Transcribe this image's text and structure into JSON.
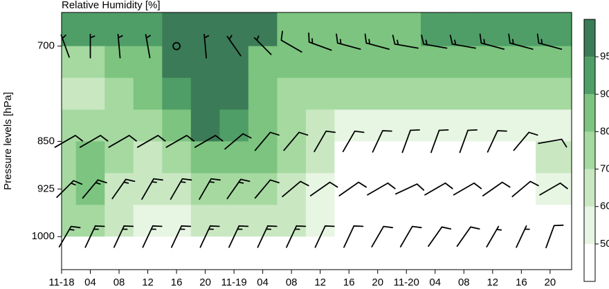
{
  "chart_data": {
    "type": "contour",
    "title": "Relative Humidity [%]",
    "y_label": "Pressure levels [hPa]",
    "xlim": [
      0,
      71
    ],
    "xticks": [
      {
        "value": 0,
        "label": "11-18"
      },
      {
        "value": 4,
        "label": "04"
      },
      {
        "value": 8,
        "label": "08"
      },
      {
        "value": 12,
        "label": "12"
      },
      {
        "value": 16,
        "label": "16"
      },
      {
        "value": 20,
        "label": "20"
      },
      {
        "value": 24,
        "label": "11-19"
      },
      {
        "value": 28,
        "label": "04"
      },
      {
        "value": 32,
        "label": "08"
      },
      {
        "value": 36,
        "label": "12"
      },
      {
        "value": 40,
        "label": "16"
      },
      {
        "value": 44,
        "label": "20"
      },
      {
        "value": 48,
        "label": "11-20"
      },
      {
        "value": 52,
        "label": "04"
      },
      {
        "value": 56,
        "label": "08"
      },
      {
        "value": 60,
        "label": "12"
      },
      {
        "value": 64,
        "label": "16"
      },
      {
        "value": 68,
        "label": "20"
      }
    ],
    "ylim": [
      1052,
      647
    ],
    "yticks": [
      700,
      850,
      925,
      1000
    ],
    "levels": [
      50,
      60,
      70,
      80,
      90,
      95
    ],
    "colors": [
      "#ffffff",
      "#e7f5e3",
      "#c9e8c2",
      "#a5d9a0",
      "#7cc47f",
      "#4f9e67",
      "#3b7b57"
    ],
    "colorbar_ticks": [
      50,
      60,
      70,
      80,
      90,
      95
    ],
    "rh": {
      "hours": [
        0,
        4,
        8,
        12,
        16,
        20,
        24,
        28,
        32,
        36,
        40,
        44,
        48,
        52,
        56,
        60,
        64,
        68
      ],
      "pressure": [
        675,
        725,
        775,
        825,
        875,
        925,
        975,
        1025
      ],
      "values": [
        [
          90,
          90,
          92,
          93,
          97,
          97,
          97,
          97,
          88,
          80,
          82,
          82,
          85,
          92,
          92,
          92,
          92,
          92
        ],
        [
          75,
          75,
          80,
          85,
          97,
          97,
          97,
          85,
          82,
          82,
          82,
          82,
          82,
          82,
          82,
          82,
          82,
          82
        ],
        [
          62,
          68,
          75,
          82,
          92,
          96,
          96,
          82,
          78,
          75,
          72,
          72,
          72,
          72,
          72,
          72,
          72,
          72
        ],
        [
          72,
          72,
          72,
          78,
          88,
          96,
          92,
          82,
          75,
          65,
          58,
          55,
          55,
          52,
          52,
          52,
          55,
          58
        ],
        [
          75,
          82,
          72,
          68,
          75,
          85,
          88,
          80,
          72,
          62,
          48,
          45,
          45,
          45,
          45,
          45,
          45,
          62
        ],
        [
          75,
          82,
          68,
          62,
          65,
          72,
          75,
          72,
          65,
          55,
          45,
          45,
          45,
          45,
          45,
          45,
          45,
          55
        ],
        [
          72,
          72,
          65,
          58,
          58,
          60,
          62,
          62,
          60,
          52,
          45,
          45,
          45,
          45,
          45,
          45,
          45,
          45
        ],
        [
          40,
          40,
          40,
          40,
          40,
          40,
          40,
          40,
          40,
          40,
          40,
          40,
          40,
          40,
          40,
          40,
          40,
          40
        ]
      ]
    },
    "wind": {
      "levels": [
        700,
        850,
        925,
        1000
      ],
      "hours": [
        0.5,
        4,
        8,
        12,
        16,
        20,
        24,
        28,
        32,
        36,
        40,
        44,
        48,
        52,
        56,
        60,
        64,
        68
      ],
      "direction": [
        [
          340,
          0,
          355,
          350,
          0,
          355,
          325,
          315,
          300,
          290,
          285,
          285,
          280,
          280,
          280,
          285,
          285,
          285
        ],
        [
          60,
          60,
          60,
          60,
          60,
          60,
          50,
          40,
          40,
          30,
          30,
          25,
          20,
          20,
          20,
          25,
          40,
          80
        ],
        [
          45,
          40,
          35,
          30,
          30,
          30,
          35,
          40,
          50,
          55,
          55,
          60,
          65,
          60,
          60,
          55,
          50,
          60
        ],
        [
          30,
          25,
          25,
          25,
          25,
          25,
          25,
          25,
          25,
          25,
          25,
          30,
          30,
          35,
          35,
          30,
          25,
          20
        ]
      ],
      "speed": [
        [
          5,
          5,
          5,
          5,
          0,
          5,
          5,
          5,
          10,
          15,
          15,
          15,
          15,
          15,
          15,
          15,
          15,
          15
        ],
        [
          10,
          10,
          10,
          10,
          10,
          10,
          10,
          10,
          10,
          10,
          10,
          10,
          10,
          10,
          10,
          10,
          10,
          10
        ],
        [
          15,
          15,
          15,
          15,
          15,
          15,
          15,
          10,
          10,
          10,
          10,
          10,
          10,
          10,
          10,
          10,
          10,
          10
        ],
        [
          15,
          15,
          15,
          15,
          15,
          15,
          15,
          15,
          15,
          10,
          10,
          10,
          10,
          10,
          10,
          5,
          5,
          10
        ]
      ]
    }
  }
}
